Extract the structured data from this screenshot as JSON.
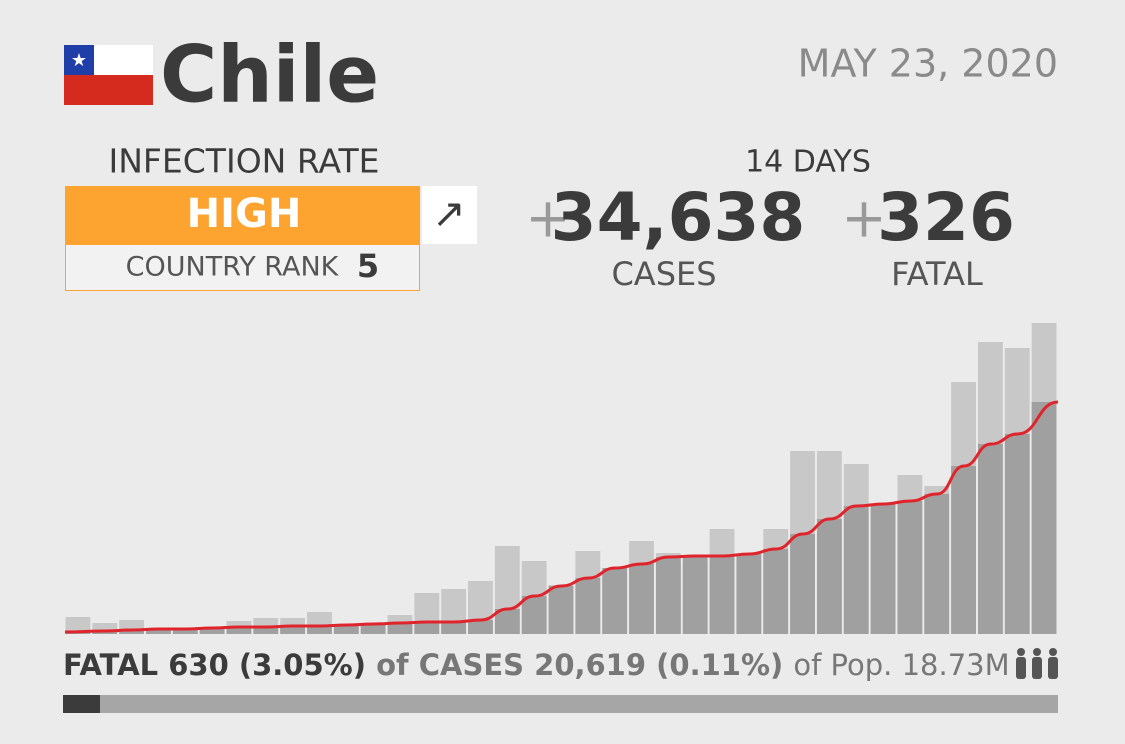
{
  "header": {
    "country": "Chile",
    "date": "MAY 23, 2020"
  },
  "infection": {
    "label": "INFECTION RATE",
    "level": "HIGH",
    "trend": "↗",
    "rank_label": "COUNTRY RANK",
    "rank": "5"
  },
  "totals": {
    "period": "14 DAYS",
    "sign": "+",
    "cases": "34,638",
    "cases_label": "CASES",
    "fatal": "326",
    "fatal_label": "FATAL"
  },
  "footer": {
    "fatal": "FATAL 630 (3.05%)",
    "cases": "of CASES 20,619 (0.11%)",
    "population": "of Pop. 18.73M"
  },
  "chart_data": {
    "type": "bar",
    "ylim": [
      0,
      311
    ],
    "series": [
      {
        "name": "daily",
        "color": "#c8c8c8",
        "values": [
          17,
          11,
          14,
          6,
          6,
          6,
          13,
          16,
          16,
          22,
          8,
          8,
          19,
          41,
          45,
          53,
          88,
          73,
          49,
          83,
          56,
          93,
          81,
          70,
          105,
          76,
          105,
          183,
          183,
          170,
          124,
          159,
          148,
          252,
          292,
          286,
          311
        ]
      },
      {
        "name": "average",
        "color": "#a0a0a0",
        "line_color": "#e0242b",
        "values": [
          2,
          3,
          4,
          5,
          5,
          6,
          7,
          7,
          8,
          8,
          9,
          10,
          11,
          12,
          12,
          14,
          25,
          38,
          48,
          56,
          66,
          70,
          77,
          78,
          78,
          80,
          85,
          100,
          115,
          128,
          130,
          133,
          140,
          168,
          190,
          200,
          232
        ]
      }
    ]
  }
}
